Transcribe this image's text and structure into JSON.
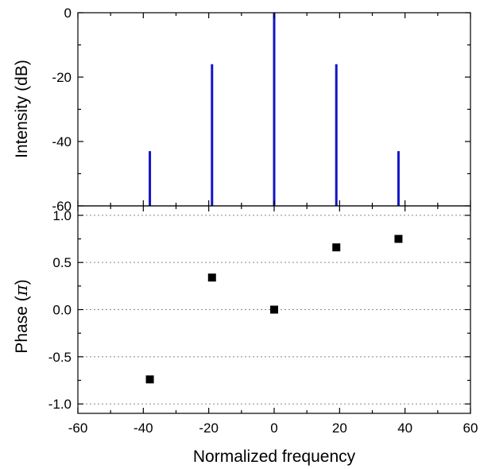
{
  "chart_data": [
    {
      "type": "bar",
      "subtype": "stem",
      "ylabel": "Intensity (dB)",
      "x": [
        -38,
        -19,
        0,
        19,
        38
      ],
      "values": [
        -43,
        -16,
        0,
        -16,
        -43
      ],
      "xlim": [
        -60,
        60
      ],
      "ylim": [
        -60,
        0
      ],
      "yticks": [
        -60,
        -40,
        -20,
        0
      ],
      "ytick_labels": [
        "-60",
        "-40",
        "-20",
        "0"
      ],
      "grid": false,
      "color": "#1414c8"
    },
    {
      "type": "scatter",
      "xlabel": "Normalized frequency",
      "ylabel_prefix": "Phase (",
      "ylabel_symbol": "π",
      "ylabel_suffix": ")",
      "x": [
        -38,
        -19,
        0,
        19,
        38
      ],
      "y": [
        -0.74,
        0.34,
        0.0,
        0.66,
        0.75
      ],
      "xlim": [
        -60,
        60
      ],
      "ylim": [
        -1.1,
        1.1
      ],
      "xticks": [
        -60,
        -40,
        -20,
        0,
        20,
        40,
        60
      ],
      "xtick_labels": [
        "-60",
        "-40",
        "-20",
        "0",
        "20",
        "40",
        "60"
      ],
      "yticks": [
        -1.0,
        -0.5,
        0.0,
        0.5,
        1.0
      ],
      "ytick_labels": [
        "-1.0",
        "-0.5",
        "0.0",
        "0.5",
        "1.0"
      ],
      "grid": true,
      "marker": "square",
      "color": "#000000"
    }
  ]
}
